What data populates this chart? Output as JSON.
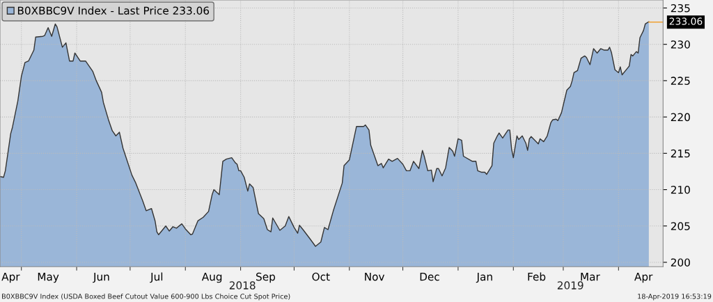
{
  "chart_data": {
    "type": "area",
    "x": [
      "2018-04-19",
      "2018-04-21",
      "2018-04-22",
      "2018-04-25",
      "2018-04-26",
      "2018-04-29",
      "2018-05-01",
      "2018-05-03",
      "2018-05-05",
      "2018-05-08",
      "2018-05-09",
      "2018-05-13",
      "2018-05-14",
      "2018-05-16",
      "2018-05-18",
      "2018-05-20",
      "2018-05-21",
      "2018-05-24",
      "2018-05-26",
      "2018-05-28",
      "2018-05-30",
      "2018-05-31",
      "2018-06-03",
      "2018-06-06",
      "2018-06-10",
      "2018-06-12",
      "2018-06-15",
      "2018-06-16",
      "2018-06-19",
      "2018-06-21",
      "2018-06-23",
      "2018-06-25",
      "2018-06-27",
      "2018-07-02",
      "2018-07-04",
      "2018-07-08",
      "2018-07-10",
      "2018-07-13",
      "2018-07-15",
      "2018-07-16",
      "2018-07-17",
      "2018-07-21",
      "2018-07-23",
      "2018-07-25",
      "2018-07-27",
      "2018-07-30",
      "2018-08-01",
      "2018-08-04",
      "2018-08-05",
      "2018-08-08",
      "2018-08-11",
      "2018-08-14",
      "2018-08-16",
      "2018-08-17",
      "2018-08-20",
      "2018-08-22",
      "2018-08-24",
      "2018-08-27",
      "2018-08-29",
      "2018-08-30",
      "2018-08-31",
      "2018-09-01",
      "2018-09-03",
      "2018-09-05",
      "2018-09-06",
      "2018-09-08",
      "2018-09-11",
      "2018-09-14",
      "2018-09-16",
      "2018-09-18",
      "2018-09-19",
      "2018-09-23",
      "2018-09-26",
      "2018-09-28",
      "2018-10-01",
      "2018-10-03",
      "2018-10-04",
      "2018-10-06",
      "2018-10-10",
      "2018-10-13",
      "2018-10-16",
      "2018-10-18",
      "2018-10-20",
      "2018-10-23",
      "2018-10-28",
      "2018-10-29",
      "2018-11-01",
      "2018-11-05",
      "2018-11-09",
      "2018-11-10",
      "2018-11-12",
      "2018-11-13",
      "2018-11-17",
      "2018-11-19",
      "2018-11-20",
      "2018-11-23",
      "2018-11-25",
      "2018-11-28",
      "2018-12-01",
      "2018-12-03",
      "2018-12-05",
      "2018-12-07",
      "2018-12-10",
      "2018-12-12",
      "2018-12-13",
      "2018-12-15",
      "2018-12-17",
      "2018-12-18",
      "2018-12-20",
      "2018-12-21",
      "2018-12-23",
      "2018-12-25",
      "2018-12-27",
      "2018-12-29",
      "2018-12-30",
      "2019-01-01",
      "2019-01-03",
      "2019-01-04",
      "2019-01-09",
      "2019-01-11",
      "2019-01-12",
      "2019-01-14",
      "2019-01-16",
      "2019-01-17",
      "2019-01-20",
      "2019-01-21",
      "2019-01-23",
      "2019-01-24",
      "2019-01-26",
      "2019-01-29",
      "2019-01-30",
      "2019-01-31",
      "2019-02-01",
      "2019-02-03",
      "2019-02-04",
      "2019-02-06",
      "2019-02-08",
      "2019-02-09",
      "2019-02-10",
      "2019-02-11",
      "2019-02-15",
      "2019-02-16",
      "2019-02-18",
      "2019-02-20",
      "2019-02-22",
      "2019-02-23",
      "2019-02-25",
      "2019-02-26",
      "2019-02-28",
      "2019-03-03",
      "2019-03-05",
      "2019-03-06",
      "2019-03-07",
      "2019-03-09",
      "2019-03-11",
      "2019-03-13",
      "2019-03-14",
      "2019-03-16",
      "2019-03-18",
      "2019-03-20",
      "2019-03-22",
      "2019-03-24",
      "2019-03-26",
      "2019-03-27",
      "2019-03-28",
      "2019-03-30",
      "2019-04-01",
      "2019-04-02",
      "2019-04-03",
      "2019-04-06",
      "2019-04-07",
      "2019-04-08",
      "2019-04-09",
      "2019-04-11",
      "2019-04-12",
      "2019-04-13",
      "2019-04-15",
      "2019-04-16",
      "2019-04-18"
    ],
    "series": [
      {
        "name": "B0XBBC9V Index - Last Price 233.06",
        "color": "#9ab6d8",
        "values": [
          211.8,
          211.7,
          212.6,
          217.7,
          218.6,
          222.2,
          225.6,
          227.5,
          227.7,
          229.2,
          231.0,
          231.1,
          231.2,
          232.3,
          231.1,
          232.8,
          232.4,
          229.6,
          230.2,
          227.7,
          227.7,
          228.8,
          227.7,
          227.7,
          226.3,
          225.0,
          223.4,
          222.0,
          219.5,
          218.1,
          217.4,
          217.9,
          215.7,
          212.0,
          211.0,
          208.5,
          207.1,
          207.4,
          205.7,
          204.2,
          203.8,
          205.0,
          204.3,
          204.9,
          204.7,
          205.3,
          204.6,
          203.8,
          203.9,
          205.7,
          206.2,
          207.0,
          209.3,
          210.0,
          209.3,
          213.9,
          214.2,
          214.4,
          213.7,
          213.5,
          212.6,
          212.6,
          211.7,
          209.8,
          210.8,
          210.3,
          206.7,
          206.0,
          204.5,
          204.2,
          206.1,
          204.4,
          205.0,
          206.3,
          204.8,
          204.0,
          205.1,
          204.5,
          203.2,
          202.2,
          202.8,
          204.8,
          204.5,
          207.1,
          210.9,
          213.3,
          214.1,
          218.7,
          218.7,
          218.9,
          218.2,
          216.1,
          213.3,
          213.6,
          213.0,
          214.2,
          213.9,
          214.3,
          213.5,
          212.6,
          212.6,
          213.9,
          212.9,
          215.4,
          214.6,
          212.6,
          212.7,
          211.1,
          212.9,
          212.9,
          211.9,
          213.0,
          215.8,
          215.3,
          214.6,
          217.0,
          216.8,
          214.6,
          213.9,
          213.9,
          212.6,
          212.4,
          212.4,
          212.1,
          213.3,
          216.4,
          217.4,
          217.8,
          217.1,
          218.2,
          218.2,
          215.6,
          214.4,
          217.4,
          216.9,
          217.4,
          216.4,
          215.4,
          217.0,
          217.3,
          216.3,
          217.0,
          216.6,
          217.4,
          219.2,
          219.6,
          219.7,
          219.5,
          220.6,
          223.7,
          224.2,
          225.0,
          226.1,
          226.4,
          228.1,
          228.4,
          228.2,
          227.2,
          229.4,
          228.8,
          229.4,
          229.2,
          229.2,
          229.6,
          228.9,
          226.5,
          226.1,
          226.9,
          225.8,
          226.7,
          227.0,
          228.6,
          228.4,
          229.0,
          228.8,
          230.9,
          231.9,
          232.8,
          233.1
        ]
      }
    ],
    "xlim": [
      "2018-04-19",
      "2019-04-26"
    ],
    "xticks": [
      {
        "value": "2018-04-25",
        "label": "Apr"
      },
      {
        "value": "2018-05-16",
        "label": "May"
      },
      {
        "value": "2018-06-15",
        "label": "Jun"
      },
      {
        "value": "2018-07-16",
        "label": "Jul"
      },
      {
        "value": "2018-08-16",
        "label": "Aug"
      },
      {
        "value": "2018-09-15",
        "label": "Sep"
      },
      {
        "value": "2018-10-16",
        "label": "Oct"
      },
      {
        "value": "2018-11-15",
        "label": "Nov"
      },
      {
        "value": "2018-12-16",
        "label": "Dec"
      },
      {
        "value": "2019-01-16",
        "label": "Jan"
      },
      {
        "value": "2019-02-14",
        "label": "Feb"
      },
      {
        "value": "2019-03-16",
        "label": "Mar"
      },
      {
        "value": "2019-04-15",
        "label": "Apr"
      },
      {
        "value": "2018-05-01",
        "label": null
      },
      {
        "value": "2018-06-01",
        "label": null
      },
      {
        "value": "2018-07-01",
        "label": null
      },
      {
        "value": "2018-08-01",
        "label": null
      },
      {
        "value": "2018-09-01",
        "label": null
      },
      {
        "value": "2018-10-01",
        "label": null
      },
      {
        "value": "2018-11-01",
        "label": null
      },
      {
        "value": "2018-12-01",
        "label": null
      },
      {
        "value": "2019-01-01",
        "label": null
      },
      {
        "value": "2019-02-01",
        "label": null
      },
      {
        "value": "2019-03-01",
        "label": null
      },
      {
        "value": "2019-04-01",
        "label": null
      }
    ],
    "ylim": [
      199.4,
      236.1
    ],
    "yticks": [
      200,
      205,
      210,
      215,
      220,
      225,
      230,
      235
    ],
    "ref_lines": [
      {
        "axis": "y",
        "value": 233.06,
        "label": "233.06",
        "color": "#f0a030"
      }
    ],
    "annotations": [
      "2018",
      "2019",
      "B0XBBC9V Index (USDA Boxed Beef Cutout Value 600-900 Lbs Choice Cut Spot Price)",
      "18-Apr-2019 16:53:19"
    ],
    "grid": true,
    "legend": "top left"
  }
}
